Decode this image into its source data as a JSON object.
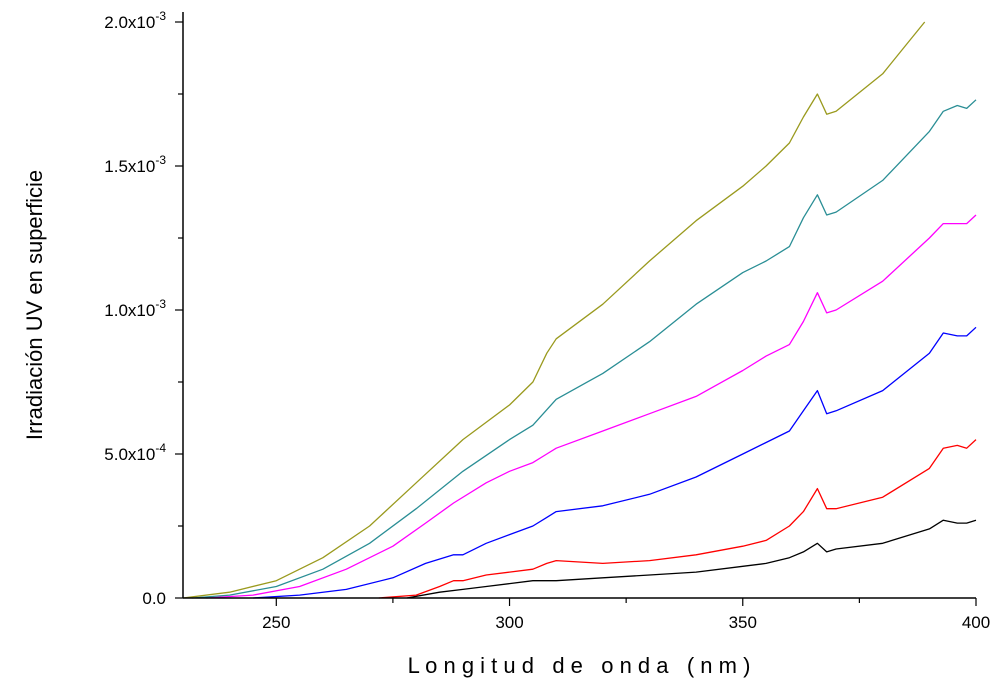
{
  "chart_data": {
    "type": "line",
    "title": "",
    "xlabel": "L o n g i t u d   d e   o n d a   ( n m )",
    "ylabel": "Irradiación UV en superficie",
    "xlim": [
      230,
      400
    ],
    "ylim": [
      0,
      0.002
    ],
    "x_ticks": [
      {
        "value": 250,
        "label": "250"
      },
      {
        "value": 300,
        "label": "300"
      },
      {
        "value": 350,
        "label": "350"
      },
      {
        "value": 400,
        "label": "400"
      }
    ],
    "y_ticks": [
      {
        "value": 0,
        "mant": "0.0",
        "exp": ""
      },
      {
        "value": 0.0005,
        "mant": "5.0x10",
        "exp": "-4"
      },
      {
        "value": 0.001,
        "mant": "1.0x10",
        "exp": "-3"
      },
      {
        "value": 0.0015,
        "mant": "1.5x10",
        "exp": "-3"
      },
      {
        "value": 0.002,
        "mant": "2.0x10",
        "exp": "-3"
      }
    ],
    "grid": false,
    "legend": "none",
    "series": [
      {
        "color": "#000000",
        "points": [
          [
            278,
            0
          ],
          [
            285,
            2e-05
          ],
          [
            290,
            3e-05
          ],
          [
            295,
            4e-05
          ],
          [
            300,
            5e-05
          ],
          [
            305,
            6e-05
          ],
          [
            310,
            6e-05
          ],
          [
            320,
            7e-05
          ],
          [
            330,
            8e-05
          ],
          [
            340,
            9e-05
          ],
          [
            350,
            0.00011
          ],
          [
            355,
            0.00012
          ],
          [
            360,
            0.00014
          ],
          [
            363,
            0.00016
          ],
          [
            366,
            0.00019
          ],
          [
            368,
            0.00016
          ],
          [
            370,
            0.00017
          ],
          [
            380,
            0.00019
          ],
          [
            390,
            0.00024
          ],
          [
            393,
            0.00027
          ],
          [
            396,
            0.00026
          ],
          [
            398,
            0.00026
          ],
          [
            400,
            0.00027
          ]
        ]
      },
      {
        "color": "#ff0000",
        "points": [
          [
            272,
            0
          ],
          [
            280,
            1e-05
          ],
          [
            285,
            4e-05
          ],
          [
            288,
            6e-05
          ],
          [
            290,
            6e-05
          ],
          [
            295,
            8e-05
          ],
          [
            300,
            9e-05
          ],
          [
            305,
            0.0001
          ],
          [
            308,
            0.00012
          ],
          [
            310,
            0.00013
          ],
          [
            320,
            0.00012
          ],
          [
            330,
            0.00013
          ],
          [
            340,
            0.00015
          ],
          [
            350,
            0.00018
          ],
          [
            355,
            0.0002
          ],
          [
            360,
            0.00025
          ],
          [
            363,
            0.0003
          ],
          [
            366,
            0.00038
          ],
          [
            368,
            0.00031
          ],
          [
            370,
            0.00031
          ],
          [
            380,
            0.00035
          ],
          [
            390,
            0.00045
          ],
          [
            393,
            0.00052
          ],
          [
            396,
            0.00053
          ],
          [
            398,
            0.00052
          ],
          [
            400,
            0.00055
          ]
        ]
      },
      {
        "color": "#0000ff",
        "points": [
          [
            245,
            0
          ],
          [
            255,
            1e-05
          ],
          [
            265,
            3e-05
          ],
          [
            275,
            7e-05
          ],
          [
            282,
            0.00012
          ],
          [
            288,
            0.00015
          ],
          [
            290,
            0.00015
          ],
          [
            295,
            0.00019
          ],
          [
            300,
            0.00022
          ],
          [
            305,
            0.00025
          ],
          [
            308,
            0.00028
          ],
          [
            310,
            0.0003
          ],
          [
            320,
            0.00032
          ],
          [
            330,
            0.00036
          ],
          [
            340,
            0.00042
          ],
          [
            350,
            0.0005
          ],
          [
            355,
            0.00054
          ],
          [
            360,
            0.00058
          ],
          [
            363,
            0.00065
          ],
          [
            366,
            0.00072
          ],
          [
            368,
            0.00064
          ],
          [
            370,
            0.00065
          ],
          [
            380,
            0.00072
          ],
          [
            390,
            0.00085
          ],
          [
            393,
            0.00092
          ],
          [
            396,
            0.00091
          ],
          [
            398,
            0.00091
          ],
          [
            400,
            0.00094
          ]
        ]
      },
      {
        "color": "#ff00ff",
        "points": [
          [
            235,
            0
          ],
          [
            245,
            1e-05
          ],
          [
            255,
            4e-05
          ],
          [
            265,
            0.0001
          ],
          [
            275,
            0.00018
          ],
          [
            282,
            0.00026
          ],
          [
            288,
            0.00033
          ],
          [
            295,
            0.0004
          ],
          [
            300,
            0.00044
          ],
          [
            305,
            0.00047
          ],
          [
            308,
            0.0005
          ],
          [
            310,
            0.00052
          ],
          [
            320,
            0.00058
          ],
          [
            330,
            0.00064
          ],
          [
            340,
            0.0007
          ],
          [
            350,
            0.00079
          ],
          [
            355,
            0.00084
          ],
          [
            360,
            0.00088
          ],
          [
            363,
            0.00096
          ],
          [
            366,
            0.00106
          ],
          [
            368,
            0.00099
          ],
          [
            370,
            0.001
          ],
          [
            380,
            0.0011
          ],
          [
            390,
            0.00125
          ],
          [
            393,
            0.0013
          ],
          [
            396,
            0.0013
          ],
          [
            398,
            0.0013
          ],
          [
            400,
            0.00133
          ]
        ]
      },
      {
        "color": "#2a8e95",
        "points": [
          [
            232,
            0
          ],
          [
            240,
            1e-05
          ],
          [
            250,
            4e-05
          ],
          [
            260,
            0.0001
          ],
          [
            270,
            0.00019
          ],
          [
            280,
            0.00031
          ],
          [
            290,
            0.00044
          ],
          [
            300,
            0.00055
          ],
          [
            305,
            0.0006
          ],
          [
            310,
            0.00069
          ],
          [
            320,
            0.00078
          ],
          [
            330,
            0.00089
          ],
          [
            340,
            0.00102
          ],
          [
            350,
            0.00113
          ],
          [
            355,
            0.00117
          ],
          [
            360,
            0.00122
          ],
          [
            363,
            0.00132
          ],
          [
            366,
            0.0014
          ],
          [
            368,
            0.00133
          ],
          [
            370,
            0.00134
          ],
          [
            380,
            0.00145
          ],
          [
            390,
            0.00162
          ],
          [
            393,
            0.00169
          ],
          [
            396,
            0.00171
          ],
          [
            398,
            0.0017
          ],
          [
            400,
            0.00173
          ]
        ]
      },
      {
        "color": "#9a9a1e",
        "points": [
          [
            230,
            0
          ],
          [
            240,
            2e-05
          ],
          [
            250,
            6e-05
          ],
          [
            260,
            0.00014
          ],
          [
            270,
            0.00025
          ],
          [
            280,
            0.0004
          ],
          [
            290,
            0.00055
          ],
          [
            300,
            0.00067
          ],
          [
            305,
            0.00075
          ],
          [
            308,
            0.00085
          ],
          [
            310,
            0.0009
          ],
          [
            320,
            0.00102
          ],
          [
            330,
            0.00117
          ],
          [
            340,
            0.00131
          ],
          [
            350,
            0.00143
          ],
          [
            355,
            0.0015
          ],
          [
            360,
            0.00158
          ],
          [
            363,
            0.00167
          ],
          [
            366,
            0.00175
          ],
          [
            368,
            0.00168
          ],
          [
            370,
            0.00169
          ],
          [
            380,
            0.00182
          ],
          [
            385,
            0.00192
          ],
          [
            389,
            0.002
          ]
        ]
      }
    ]
  }
}
